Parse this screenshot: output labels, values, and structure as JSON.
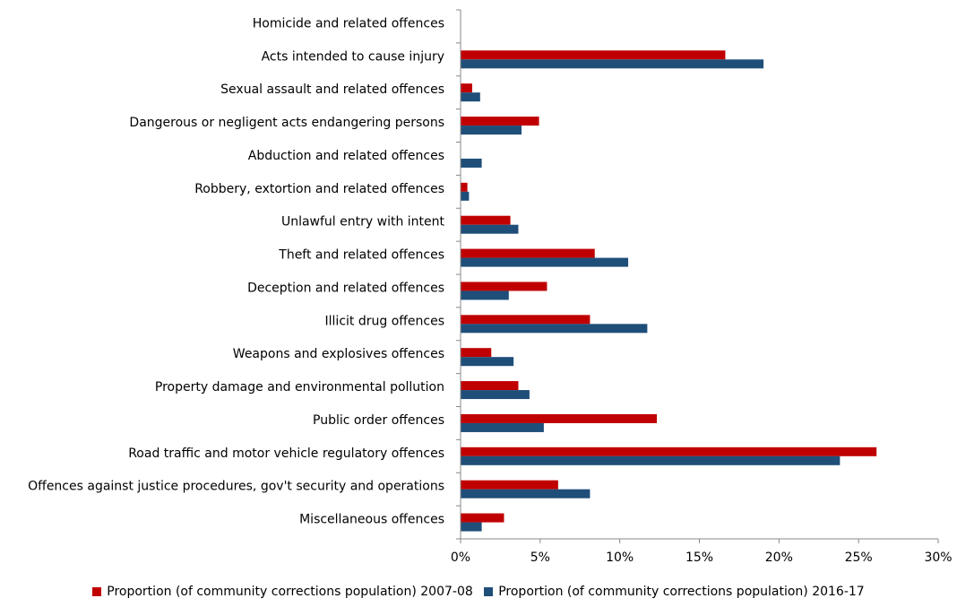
{
  "chart_data": {
    "type": "bar",
    "orientation": "horizontal",
    "title": "",
    "xlabel": "",
    "ylabel": "",
    "xlim": [
      0,
      30
    ],
    "x_ticks": [
      "0%",
      "5%",
      "10%",
      "15%",
      "20%",
      "25%",
      "30%"
    ],
    "grid": false,
    "legend_position": "bottom",
    "categories": [
      "Homicide and related offences",
      "Acts intended to cause injury",
      "Sexual assault and related offences",
      "Dangerous or negligent acts endangering persons",
      "Abduction and related offences",
      "Robbery, extortion and related offences",
      "Unlawful entry with intent",
      "Theft and related offences",
      "Deception and related offences",
      "Illicit drug offences",
      "Weapons and explosives offences",
      "Property damage and environmental pollution",
      "Public order offences",
      "Road traffic and motor vehicle regulatory offences",
      "Offences against justice procedures, gov't security and operations",
      "Miscellaneous offences"
    ],
    "series": [
      {
        "name": "Proportion (of community corrections population) 2007-08",
        "color": "#c00000",
        "values": [
          0,
          16.6,
          0.7,
          4.9,
          0,
          0.4,
          3.1,
          8.4,
          5.4,
          8.1,
          1.9,
          3.6,
          12.3,
          26.1,
          6.1,
          2.7
        ]
      },
      {
        "name": "Proportion (of community corrections population) 2016-17",
        "color": "#1f4e79",
        "values": [
          0,
          19.0,
          1.2,
          3.8,
          1.3,
          0.5,
          3.6,
          10.5,
          3.0,
          11.7,
          3.3,
          4.3,
          5.2,
          23.8,
          8.1,
          1.3
        ]
      }
    ]
  }
}
